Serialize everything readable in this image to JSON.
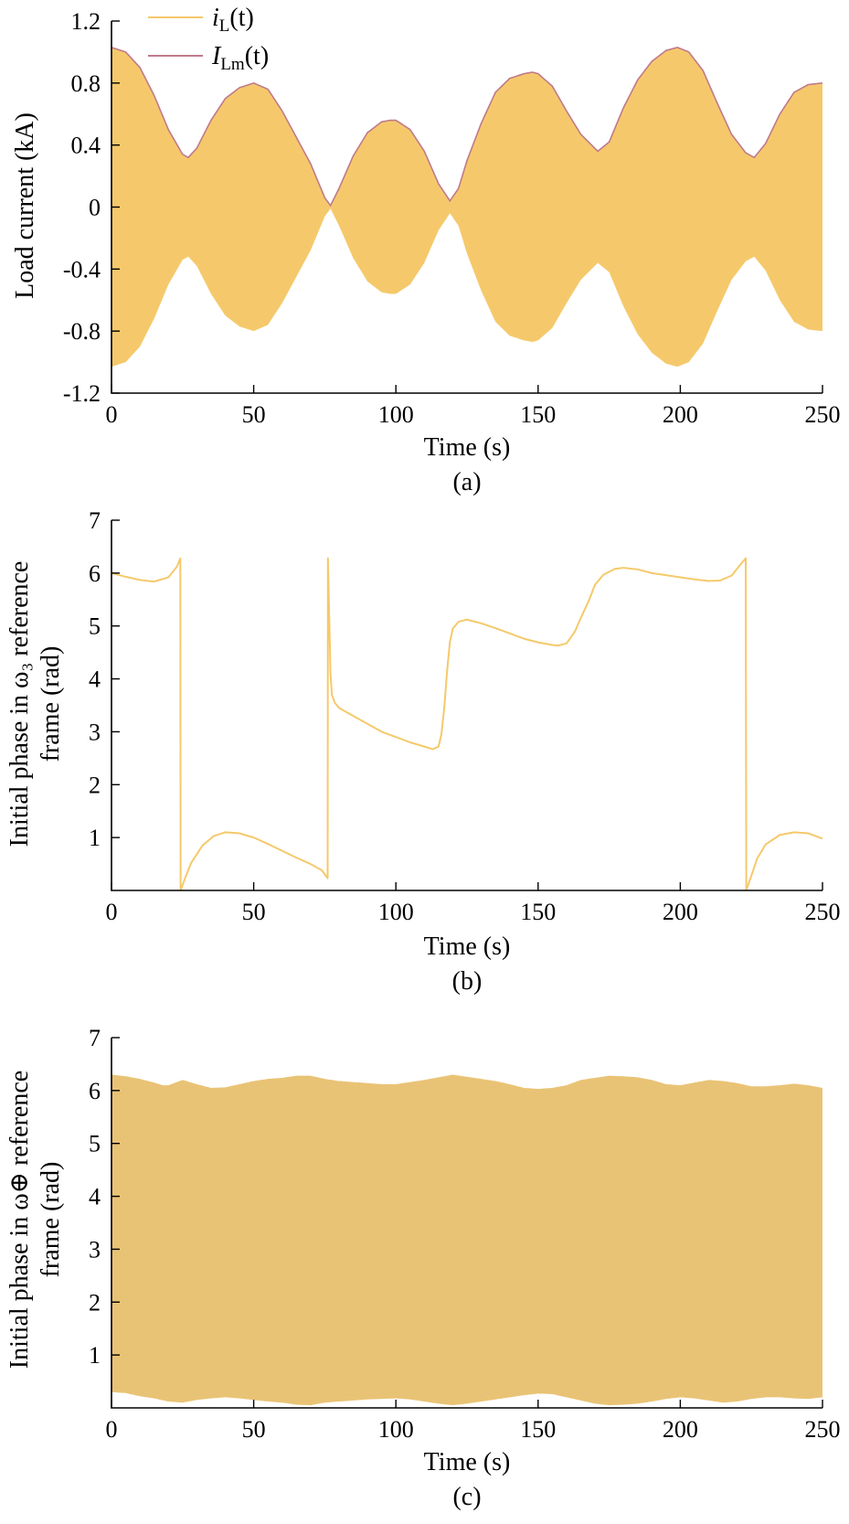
{
  "chart_data": [
    {
      "type": "area",
      "panel_label": "(a)",
      "xlabel": "Time (s)",
      "ylabel": "Load current (kA)",
      "xlim": [
        0,
        250
      ],
      "ylim": [
        -1.2,
        1.2
      ],
      "xticks": [
        "0",
        "50",
        "100",
        "150",
        "200",
        "250"
      ],
      "yticks": [
        "1.2",
        "0.8",
        "0.4",
        "0",
        "-0.4",
        "-0.8",
        "-1.2"
      ],
      "legend_position": "top-left",
      "series": [
        {
          "name_main": "i",
          "name_sub": "L",
          "name_suffix": "(t)",
          "color": "#F5C96B",
          "style": "filled-oscillation-band"
        },
        {
          "name_main": "I",
          "name_sub": "Lm",
          "name_suffix": "(t)",
          "color": "#C07A8A",
          "style": "envelope-line"
        }
      ],
      "envelope": {
        "x": [
          0,
          5,
          10,
          15,
          20,
          25,
          27,
          30,
          35,
          40,
          45,
          50,
          55,
          60,
          65,
          70,
          75,
          77,
          80,
          85,
          90,
          95,
          98,
          100,
          105,
          110,
          115,
          119,
          122,
          125,
          130,
          135,
          140,
          145,
          148,
          150,
          155,
          160,
          165,
          171,
          175,
          180,
          185,
          190,
          195,
          199,
          203,
          208,
          213,
          218,
          223,
          226,
          230,
          235,
          240,
          245,
          250
        ],
        "y": [
          1.03,
          1.0,
          0.9,
          0.72,
          0.5,
          0.34,
          0.32,
          0.38,
          0.56,
          0.7,
          0.77,
          0.8,
          0.76,
          0.62,
          0.45,
          0.28,
          0.06,
          0.01,
          0.12,
          0.33,
          0.48,
          0.55,
          0.56,
          0.56,
          0.5,
          0.36,
          0.15,
          0.04,
          0.12,
          0.3,
          0.54,
          0.74,
          0.83,
          0.86,
          0.87,
          0.86,
          0.78,
          0.62,
          0.47,
          0.36,
          0.42,
          0.64,
          0.82,
          0.94,
          1.01,
          1.03,
          1.0,
          0.88,
          0.67,
          0.47,
          0.35,
          0.32,
          0.41,
          0.6,
          0.74,
          0.79,
          0.8
        ]
      }
    },
    {
      "type": "line",
      "panel_label": "(b)",
      "xlabel": "Time (s)",
      "ylabel_line1": "Initial phase in ω₃ reference",
      "ylabel_line2": "frame (rad)",
      "xlim": [
        0,
        250
      ],
      "ylim": [
        0,
        7
      ],
      "xticks": [
        "0",
        "50",
        "100",
        "150",
        "200",
        "250"
      ],
      "yticks": [
        "7",
        "6",
        "5",
        "4",
        "3",
        "2",
        "1"
      ],
      "color": "#F5C96B",
      "x": [
        0,
        5,
        10,
        15,
        20,
        23,
        24.2,
        24.3,
        26,
        28,
        32,
        36,
        40,
        45,
        50,
        55,
        60,
        65,
        70,
        74,
        76,
        76.1,
        76.5,
        77,
        77.5,
        78.5,
        80,
        85,
        90,
        95,
        100,
        105,
        110,
        113,
        115,
        116,
        117,
        118,
        119,
        120,
        122,
        125,
        130,
        135,
        140,
        145,
        150,
        155,
        157,
        160,
        163,
        165,
        168,
        170,
        173,
        177,
        180,
        185,
        190,
        195,
        200,
        205,
        210,
        214,
        218,
        221,
        223,
        223.2,
        223.3,
        225,
        227,
        230,
        235,
        240,
        245,
        250
      ],
      "y": [
        6.0,
        5.93,
        5.87,
        5.84,
        5.92,
        6.12,
        6.28,
        0.0,
        0.25,
        0.52,
        0.85,
        1.03,
        1.1,
        1.08,
        1.0,
        0.88,
        0.75,
        0.62,
        0.5,
        0.38,
        0.23,
        6.28,
        5.3,
        4.1,
        3.7,
        3.55,
        3.45,
        3.3,
        3.15,
        3.0,
        2.9,
        2.8,
        2.72,
        2.67,
        2.72,
        2.95,
        3.45,
        4.15,
        4.7,
        4.95,
        5.08,
        5.12,
        5.05,
        4.96,
        4.86,
        4.76,
        4.69,
        4.64,
        4.63,
        4.67,
        4.9,
        5.15,
        5.5,
        5.78,
        5.97,
        6.08,
        6.1,
        6.07,
        6.0,
        5.96,
        5.92,
        5.88,
        5.85,
        5.86,
        5.95,
        6.15,
        6.28,
        0.0,
        0.02,
        0.28,
        0.6,
        0.87,
        1.05,
        1.1,
        1.08,
        0.98
      ]
    },
    {
      "type": "area",
      "panel_label": "(c)",
      "xlabel": "Time (s)",
      "ylabel_line1": "Initial phase in ω⊕ reference",
      "ylabel_line2": "frame (rad)",
      "xlim": [
        0,
        250
      ],
      "ylim": [
        0,
        7
      ],
      "xticks": [
        "0",
        "50",
        "100",
        "150",
        "200",
        "250"
      ],
      "yticks": [
        "7",
        "6",
        "5",
        "4",
        "3",
        "2",
        "1"
      ],
      "color": "#E9C375",
      "style": "dense-wrapped-phase-band",
      "upper": {
        "x": [
          0,
          5,
          10,
          15,
          18,
          20,
          25,
          30,
          35,
          40,
          45,
          50,
          55,
          60,
          65,
          70,
          75,
          80,
          85,
          90,
          95,
          100,
          105,
          110,
          115,
          120,
          125,
          130,
          135,
          140,
          145,
          150,
          155,
          160,
          165,
          170,
          175,
          180,
          185,
          190,
          195,
          200,
          205,
          210,
          215,
          220,
          225,
          230,
          235,
          240,
          245,
          250
        ],
        "y": [
          6.3,
          6.27,
          6.22,
          6.15,
          6.1,
          6.1,
          6.2,
          6.12,
          6.05,
          6.06,
          6.12,
          6.18,
          6.22,
          6.24,
          6.28,
          6.28,
          6.22,
          6.18,
          6.16,
          6.14,
          6.12,
          6.12,
          6.16,
          6.2,
          6.25,
          6.3,
          6.26,
          6.22,
          6.18,
          6.12,
          6.05,
          6.03,
          6.05,
          6.1,
          6.2,
          6.24,
          6.28,
          6.27,
          6.25,
          6.2,
          6.12,
          6.1,
          6.15,
          6.2,
          6.18,
          6.14,
          6.08,
          6.08,
          6.1,
          6.13,
          6.1,
          6.05
        ]
      },
      "lower": {
        "x": [
          0,
          5,
          10,
          15,
          20,
          25,
          30,
          35,
          40,
          45,
          50,
          55,
          60,
          65,
          70,
          75,
          80,
          85,
          90,
          95,
          100,
          105,
          110,
          115,
          120,
          125,
          130,
          135,
          140,
          145,
          150,
          155,
          160,
          165,
          170,
          175,
          180,
          185,
          190,
          195,
          200,
          205,
          210,
          215,
          220,
          225,
          230,
          235,
          240,
          245,
          250
        ],
        "y": [
          0.3,
          0.28,
          0.22,
          0.18,
          0.12,
          0.1,
          0.15,
          0.18,
          0.2,
          0.18,
          0.15,
          0.12,
          0.1,
          0.06,
          0.05,
          0.1,
          0.12,
          0.14,
          0.16,
          0.17,
          0.18,
          0.16,
          0.12,
          0.08,
          0.05,
          0.08,
          0.12,
          0.16,
          0.2,
          0.24,
          0.27,
          0.26,
          0.2,
          0.14,
          0.08,
          0.05,
          0.06,
          0.08,
          0.12,
          0.17,
          0.2,
          0.18,
          0.14,
          0.1,
          0.12,
          0.17,
          0.2,
          0.2,
          0.18,
          0.17,
          0.2
        ]
      }
    }
  ]
}
